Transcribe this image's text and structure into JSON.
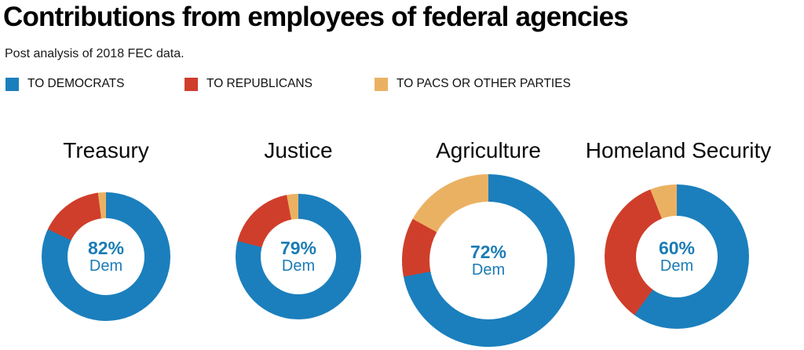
{
  "header": {
    "title": "Contributions from employees of federal agencies",
    "subtitle": "Post analysis of 2018 FEC data."
  },
  "legend": {
    "position": "top",
    "items": [
      {
        "key": "dem",
        "label": "TO DEMOCRATS",
        "color": "#1b7fbd"
      },
      {
        "key": "rep",
        "label": "TO REPUBLICANS",
        "color": "#cf3e2b"
      },
      {
        "key": "pac",
        "label": "TO PACS OR OTHER PARTIES",
        "color": "#ebb163"
      }
    ]
  },
  "accent_text_color": "#1b7cb5",
  "chart_data": {
    "type": "pie",
    "variant": "donut",
    "title": "Contributions from employees of federal agencies",
    "subtitle": "Post analysis of 2018 FEC data.",
    "units": "percent of contributions",
    "direction": "clockwise",
    "start_angle_deg": 0,
    "segment_order": [
      "dem",
      "rep",
      "pac"
    ],
    "segment_labels": {
      "dem": "To Democrats",
      "rep": "To Republicans",
      "pac": "To PACs or other parties"
    },
    "segment_colors": {
      "dem": "#1b7fbd",
      "rep": "#cf3e2b",
      "pac": "#ebb163"
    },
    "charts": [
      {
        "title": "Treasury",
        "values": {
          "dem": 82,
          "rep": 16,
          "pac": 2
        },
        "center_label_pct": "82%",
        "center_label_sub": "Dem"
      },
      {
        "title": "Justice",
        "values": {
          "dem": 79,
          "rep": 18,
          "pac": 3
        },
        "center_label_pct": "79%",
        "center_label_sub": "Dem"
      },
      {
        "title": "Agriculture",
        "values": {
          "dem": 72,
          "rep": 11,
          "pac": 17
        },
        "center_label_pct": "72%",
        "center_label_sub": "Dem"
      },
      {
        "title": "Homeland Security",
        "values": {
          "dem": 60,
          "rep": 34,
          "pac": 6
        },
        "center_label_pct": "60%",
        "center_label_sub": "Dem"
      }
    ]
  }
}
